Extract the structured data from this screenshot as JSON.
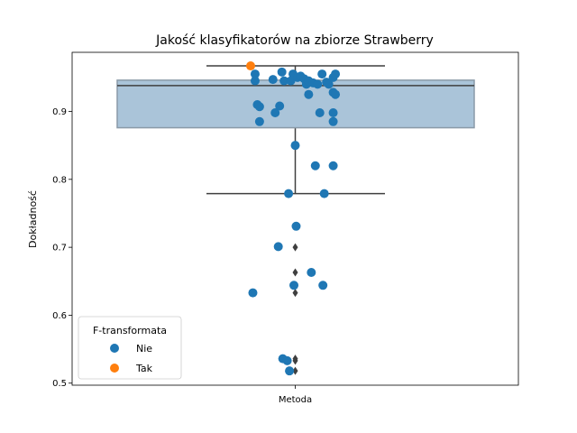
{
  "chart_data": {
    "type": "scatter",
    "subtype": "boxplot-with-stripplot",
    "title": "Jakość klasyfikatorów na zbiorze Strawberry",
    "xlabel": "",
    "ylabel": "Dokładność",
    "categories": [
      "Metoda"
    ],
    "ylim": [
      0.497,
      0.987
    ],
    "yticks": [
      "0.5",
      "0.6",
      "0.7",
      "0.8",
      "0.9"
    ],
    "grid": false,
    "box": {
      "category": "Metoda",
      "q1": 0.876,
      "median": 0.938,
      "q3": 0.946,
      "whisker_low": 0.779,
      "whisker_high": 0.967,
      "fill_color": "#aac4d9",
      "edge_color": "#3f3f3f",
      "outliers": [
        0.7,
        0.663,
        0.633,
        0.536,
        0.533,
        0.518
      ]
    },
    "legend": {
      "title": "F-transformata",
      "placement": "lower-left",
      "entries": [
        {
          "label": "Nie",
          "color": "#1f77b4"
        },
        {
          "label": "Tak",
          "color": "#ff7f0e"
        }
      ]
    },
    "series": [
      {
        "name": "Nie",
        "color": "#1f77b4",
        "points": [
          {
            "x": -0.09,
            "y": 0.955
          },
          {
            "x": -0.05,
            "y": 0.947
          },
          {
            "x": -0.03,
            "y": 0.958
          },
          {
            "x": -0.025,
            "y": 0.945
          },
          {
            "x": -0.01,
            "y": 0.945
          },
          {
            "x": -0.005,
            "y": 0.955
          },
          {
            "x": 0.005,
            "y": 0.95
          },
          {
            "x": 0.012,
            "y": 0.952
          },
          {
            "x": 0.02,
            "y": 0.948
          },
          {
            "x": 0.025,
            "y": 0.94
          },
          {
            "x": 0.03,
            "y": 0.945
          },
          {
            "x": 0.04,
            "y": 0.942
          },
          {
            "x": 0.05,
            "y": 0.94
          },
          {
            "x": 0.06,
            "y": 0.955
          },
          {
            "x": 0.07,
            "y": 0.943
          },
          {
            "x": 0.075,
            "y": 0.94
          },
          {
            "x": 0.085,
            "y": 0.95
          },
          {
            "x": 0.09,
            "y": 0.955
          },
          {
            "x": -0.09,
            "y": 0.945
          },
          {
            "x": -0.085,
            "y": 0.91
          },
          {
            "x": -0.08,
            "y": 0.907
          },
          {
            "x": -0.045,
            "y": 0.898
          },
          {
            "x": -0.035,
            "y": 0.908
          },
          {
            "x": 0.03,
            "y": 0.925
          },
          {
            "x": 0.055,
            "y": 0.898
          },
          {
            "x": 0.085,
            "y": 0.928
          },
          {
            "x": 0.09,
            "y": 0.925
          },
          {
            "x": 0.085,
            "y": 0.898
          },
          {
            "x": 0.085,
            "y": 0.885
          },
          {
            "x": -0.08,
            "y": 0.885
          },
          {
            "x": 0.0,
            "y": 0.85
          },
          {
            "x": 0.045,
            "y": 0.82
          },
          {
            "x": 0.085,
            "y": 0.82
          },
          {
            "x": -0.015,
            "y": 0.779
          },
          {
            "x": 0.065,
            "y": 0.779
          },
          {
            "x": 0.002,
            "y": 0.731
          },
          {
            "x": -0.038,
            "y": 0.701
          },
          {
            "x": 0.036,
            "y": 0.663
          },
          {
            "x": -0.003,
            "y": 0.644
          },
          {
            "x": 0.062,
            "y": 0.644
          },
          {
            "x": -0.095,
            "y": 0.633
          },
          {
            "x": -0.028,
            "y": 0.536
          },
          {
            "x": -0.018,
            "y": 0.533
          },
          {
            "x": -0.013,
            "y": 0.518
          }
        ]
      },
      {
        "name": "Tak",
        "color": "#ff7f0e",
        "points": [
          {
            "x": -0.1,
            "y": 0.967
          }
        ]
      }
    ]
  }
}
